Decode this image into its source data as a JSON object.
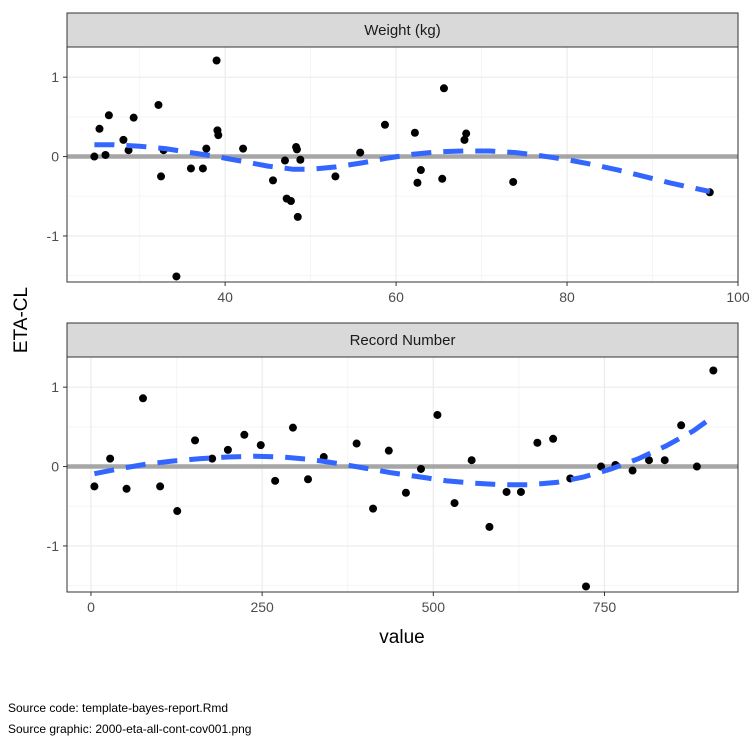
{
  "chart_data": {
    "type": "scatter",
    "ylabel": "ETA-CL",
    "xlabel": "value",
    "colors": {
      "points": "#000000",
      "smooth": "#3366FF",
      "reference": "#A6A6A6",
      "strip": "#D9D9D9",
      "grid_major": "#EBEBEB",
      "grid_minor": "#F5F5F5",
      "border": "#333333"
    },
    "reference_line_y": 0,
    "panels": [
      {
        "strip_label": "Weight (kg)",
        "xlim": [
          21.5,
          100
        ],
        "ylim": [
          -1.58,
          1.38
        ],
        "x_ticks": [
          40,
          60,
          80,
          100
        ],
        "x_tick_labels": [
          "40",
          "60",
          "80",
          "100"
        ],
        "y_ticks": [
          -1,
          0,
          1
        ],
        "y_tick_labels": [
          "-1",
          "0",
          "1"
        ],
        "points": [
          [
            24.7,
            0.0
          ],
          [
            25.3,
            0.35
          ],
          [
            26.0,
            0.02
          ],
          [
            26.4,
            0.52
          ],
          [
            28.1,
            0.21
          ],
          [
            28.7,
            0.08
          ],
          [
            29.3,
            0.49
          ],
          [
            32.2,
            0.65
          ],
          [
            32.5,
            -0.25
          ],
          [
            32.8,
            0.08
          ],
          [
            34.3,
            -1.51
          ],
          [
            36.0,
            -0.15
          ],
          [
            37.4,
            -0.15
          ],
          [
            37.8,
            0.1
          ],
          [
            39.0,
            1.21
          ],
          [
            39.1,
            0.33
          ],
          [
            39.2,
            0.27
          ],
          [
            42.1,
            0.1
          ],
          [
            45.6,
            -0.3
          ],
          [
            47.0,
            -0.05
          ],
          [
            47.2,
            -0.53
          ],
          [
            47.7,
            -0.56
          ],
          [
            48.3,
            0.12
          ],
          [
            48.4,
            0.09
          ],
          [
            48.5,
            -0.76
          ],
          [
            48.8,
            -0.04
          ],
          [
            52.9,
            -0.25
          ],
          [
            55.8,
            0.05
          ],
          [
            58.7,
            0.4
          ],
          [
            62.2,
            0.3
          ],
          [
            62.5,
            -0.33
          ],
          [
            62.9,
            -0.17
          ],
          [
            65.4,
            -0.28
          ],
          [
            65.6,
            0.86
          ],
          [
            68.0,
            0.21
          ],
          [
            68.2,
            0.29
          ],
          [
            73.7,
            -0.32
          ],
          [
            96.7,
            -0.45
          ]
        ],
        "smooth": [
          [
            24.7,
            0.15
          ],
          [
            27,
            0.15
          ],
          [
            30,
            0.13
          ],
          [
            33,
            0.1
          ],
          [
            36,
            0.05
          ],
          [
            39,
            0.0
          ],
          [
            42,
            -0.06
          ],
          [
            45,
            -0.12
          ],
          [
            48,
            -0.16
          ],
          [
            50,
            -0.16
          ],
          [
            53,
            -0.13
          ],
          [
            56,
            -0.08
          ],
          [
            59,
            -0.02
          ],
          [
            62,
            0.03
          ],
          [
            65,
            0.06
          ],
          [
            68,
            0.07
          ],
          [
            71,
            0.07
          ],
          [
            74,
            0.05
          ],
          [
            77,
            0.01
          ],
          [
            80,
            -0.04
          ],
          [
            83,
            -0.1
          ],
          [
            86,
            -0.17
          ],
          [
            89,
            -0.25
          ],
          [
            92,
            -0.33
          ],
          [
            94.5,
            -0.39
          ],
          [
            96.7,
            -0.44
          ]
        ]
      },
      {
        "strip_label": "Record Number",
        "xlim": [
          -35,
          945
        ],
        "ylim": [
          -1.58,
          1.38
        ],
        "x_ticks": [
          0,
          250,
          500,
          750
        ],
        "x_tick_labels": [
          "0",
          "250",
          "500",
          "750"
        ],
        "y_ticks": [
          -1,
          0,
          1
        ],
        "y_tick_labels": [
          "-1",
          "0",
          "1"
        ],
        "points": [
          [
            5,
            -0.25
          ],
          [
            28,
            0.1
          ],
          [
            52,
            -0.28
          ],
          [
            76,
            0.86
          ],
          [
            101,
            -0.25
          ],
          [
            126,
            -0.56
          ],
          [
            152,
            0.33
          ],
          [
            177,
            0.1
          ],
          [
            200,
            0.21
          ],
          [
            224,
            0.4
          ],
          [
            248,
            0.27
          ],
          [
            269,
            -0.18
          ],
          [
            295,
            0.49
          ],
          [
            317,
            -0.16
          ],
          [
            340,
            0.12
          ],
          [
            388,
            0.29
          ],
          [
            412,
            -0.53
          ],
          [
            435,
            0.2
          ],
          [
            460,
            -0.33
          ],
          [
            482,
            -0.03
          ],
          [
            506,
            0.65
          ],
          [
            531,
            -0.46
          ],
          [
            556,
            0.08
          ],
          [
            582,
            -0.76
          ],
          [
            607,
            -0.32
          ],
          [
            628,
            -0.32
          ],
          [
            652,
            0.3
          ],
          [
            675,
            0.35
          ],
          [
            700,
            -0.15
          ],
          [
            723,
            -1.51
          ],
          [
            745,
            0.0
          ],
          [
            766,
            0.02
          ],
          [
            791,
            -0.05
          ],
          [
            815,
            0.08
          ],
          [
            838,
            0.08
          ],
          [
            862,
            0.52
          ],
          [
            885,
            0.0
          ],
          [
            909,
            1.21
          ]
        ],
        "smooth": [
          [
            5,
            -0.09
          ],
          [
            40,
            -0.03
          ],
          [
            80,
            0.03
          ],
          [
            120,
            0.07
          ],
          [
            160,
            0.1
          ],
          [
            200,
            0.12
          ],
          [
            240,
            0.13
          ],
          [
            280,
            0.12
          ],
          [
            320,
            0.09
          ],
          [
            360,
            0.04
          ],
          [
            400,
            -0.02
          ],
          [
            440,
            -0.08
          ],
          [
            480,
            -0.13
          ],
          [
            520,
            -0.18
          ],
          [
            560,
            -0.21
          ],
          [
            600,
            -0.23
          ],
          [
            640,
            -0.23
          ],
          [
            680,
            -0.2
          ],
          [
            720,
            -0.13
          ],
          [
            760,
            -0.03
          ],
          [
            800,
            0.1
          ],
          [
            840,
            0.26
          ],
          [
            880,
            0.45
          ],
          [
            909,
            0.63
          ]
        ]
      }
    ]
  },
  "captions": [
    "Source code: template-bayes-report.Rmd",
    "Source graphic: 2000-eta-all-cont-cov001.png"
  ]
}
